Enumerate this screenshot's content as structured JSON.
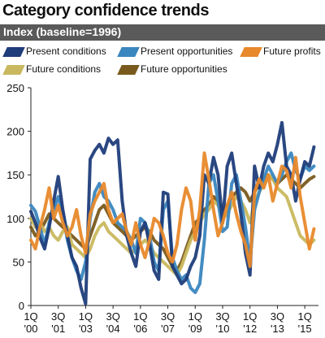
{
  "title": "Category confidence trends",
  "subtitle": "Index (baseline=1996)",
  "chart_data": {
    "type": "line",
    "title": "Category confidence trends",
    "subtitle": "Index (baseline=1996)",
    "ylim": [
      0,
      250
    ],
    "yticks": [
      0,
      50,
      100,
      150,
      200,
      250
    ],
    "xlim": [
      2000.0,
      2015.75
    ],
    "xtick_labels": [
      {
        "x": 2000.0,
        "top": "1Q",
        "bottom": "'00"
      },
      {
        "x": 2001.5,
        "top": "3Q",
        "bottom": "'01"
      },
      {
        "x": 2003.0,
        "top": "1Q",
        "bottom": "'03"
      },
      {
        "x": 2004.5,
        "top": "3Q",
        "bottom": "'04"
      },
      {
        "x": 2006.0,
        "top": "1Q",
        "bottom": "'06"
      },
      {
        "x": 2007.5,
        "top": "3Q",
        "bottom": "'07"
      },
      {
        "x": 2009.0,
        "top": "1Q",
        "bottom": "'09"
      },
      {
        "x": 2010.5,
        "top": "3Q",
        "bottom": "'10"
      },
      {
        "x": 2012.0,
        "top": "1Q",
        "bottom": "'12"
      },
      {
        "x": 2013.5,
        "top": "3Q",
        "bottom": "'13"
      },
      {
        "x": 2015.0,
        "top": "1Q",
        "bottom": "'15"
      }
    ],
    "grid": false,
    "legend_position": "top",
    "x": [
      2000.0,
      2000.25,
      2000.5,
      2000.75,
      2001.0,
      2001.25,
      2001.5,
      2001.75,
      2002.0,
      2002.25,
      2002.5,
      2002.75,
      2003.0,
      2003.25,
      2003.5,
      2003.75,
      2004.0,
      2004.25,
      2004.5,
      2004.75,
      2005.0,
      2005.25,
      2005.5,
      2005.75,
      2006.0,
      2006.25,
      2006.5,
      2006.75,
      2007.0,
      2007.25,
      2007.5,
      2007.75,
      2008.0,
      2008.25,
      2008.5,
      2008.75,
      2009.0,
      2009.25,
      2009.5,
      2009.75,
      2010.0,
      2010.25,
      2010.5,
      2010.75,
      2011.0,
      2011.25,
      2011.5,
      2011.75,
      2012.0,
      2012.25,
      2012.5,
      2012.75,
      2013.0,
      2013.25,
      2013.5,
      2013.75,
      2014.0,
      2014.25,
      2014.5,
      2014.75,
      2015.0,
      2015.25,
      2015.5
    ],
    "series": [
      {
        "name": "Present conditions",
        "color": "#1f3d7a",
        "values": [
          108,
          95,
          78,
          65,
          90,
          120,
          148,
          110,
          80,
          55,
          45,
          20,
          2,
          168,
          178,
          185,
          175,
          192,
          185,
          190,
          120,
          80,
          60,
          45,
          85,
          95,
          70,
          40,
          30,
          130,
          128,
          45,
          35,
          25,
          30,
          45,
          55,
          80,
          150,
          140,
          170,
          150,
          95,
          160,
          175,
          140,
          105,
          60,
          35,
          160,
          135,
          160,
          175,
          165,
          185,
          210,
          160,
          150,
          120,
          145,
          165,
          160,
          182
        ]
      },
      {
        "name": "Present opportunities",
        "color": "#3a86bf",
        "values": [
          115,
          108,
          90,
          70,
          95,
          110,
          125,
          105,
          75,
          55,
          40,
          30,
          50,
          100,
          130,
          140,
          125,
          120,
          110,
          95,
          90,
          85,
          75,
          60,
          100,
          95,
          80,
          50,
          40,
          110,
          120,
          55,
          40,
          30,
          35,
          20,
          15,
          25,
          75,
          140,
          150,
          120,
          85,
          90,
          140,
          150,
          120,
          90,
          50,
          110,
          130,
          145,
          160,
          150,
          140,
          150,
          165,
          175,
          155,
          145,
          160,
          155,
          160
        ]
      },
      {
        "name": "Future profits",
        "color": "#e8892b",
        "values": [
          75,
          65,
          90,
          110,
          135,
          100,
          115,
          95,
          80,
          90,
          110,
          80,
          60,
          105,
          120,
          130,
          140,
          110,
          95,
          100,
          105,
          85,
          70,
          95,
          70,
          55,
          75,
          100,
          95,
          80,
          60,
          50,
          70,
          110,
          135,
          120,
          75,
          110,
          175,
          145,
          110,
          80,
          95,
          115,
          130,
          105,
          85,
          70,
          45,
          130,
          145,
          135,
          150,
          120,
          140,
          160,
          155,
          135,
          170,
          125,
          95,
          65,
          88
        ]
      },
      {
        "name": "Future conditions",
        "color": "#c9b85e",
        "values": [
          100,
          90,
          95,
          85,
          90,
          80,
          75,
          85,
          90,
          70,
          65,
          60,
          55,
          65,
          80,
          90,
          95,
          85,
          80,
          75,
          70,
          65,
          60,
          65,
          70,
          75,
          70,
          60,
          55,
          50,
          45,
          40,
          35,
          45,
          60,
          75,
          85,
          95,
          105,
          110,
          120,
          115,
          100,
          105,
          115,
          125,
          120,
          110,
          95,
          120,
          130,
          140,
          150,
          145,
          135,
          130,
          125,
          110,
          95,
          80,
          75,
          70,
          75
        ]
      },
      {
        "name": "Future opportunities",
        "color": "#7a5a1c",
        "values": [
          90,
          80,
          85,
          95,
          105,
          100,
          95,
          90,
          85,
          80,
          75,
          70,
          65,
          80,
          95,
          110,
          115,
          105,
          95,
          90,
          85,
          80,
          75,
          80,
          85,
          90,
          85,
          75,
          70,
          65,
          55,
          45,
          40,
          50,
          65,
          80,
          95,
          100,
          110,
          115,
          125,
          120,
          110,
          115,
          125,
          130,
          135,
          130,
          120,
          130,
          140,
          145,
          150,
          145,
          140,
          145,
          150,
          145,
          140,
          135,
          140,
          145,
          148
        ]
      }
    ]
  }
}
